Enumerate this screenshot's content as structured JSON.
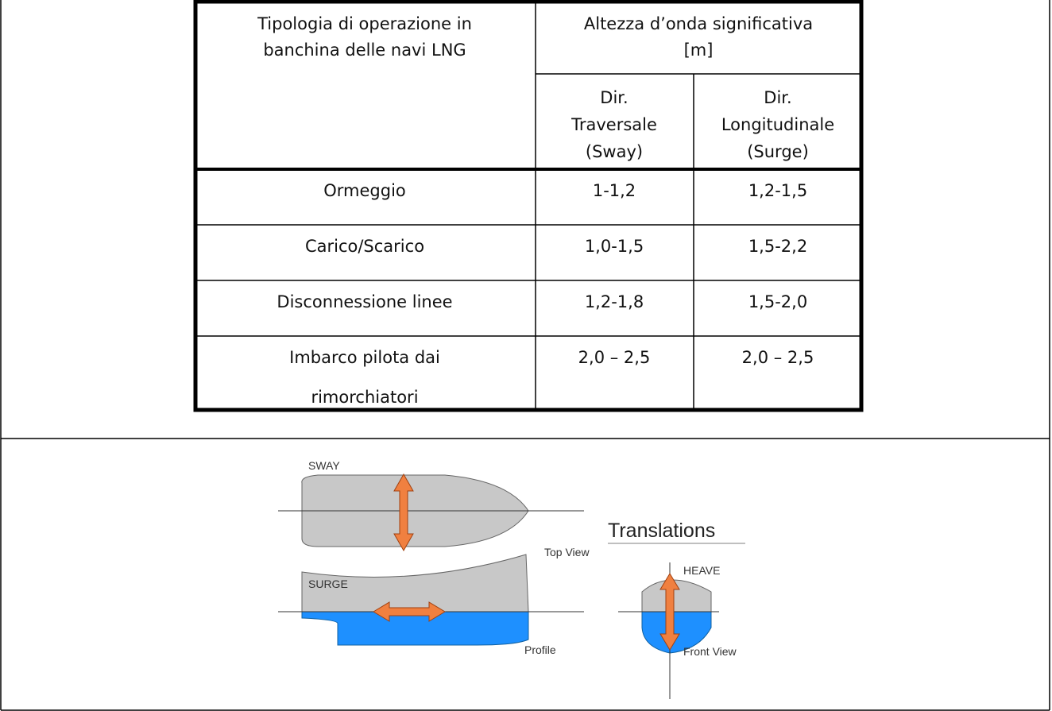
{
  "table": {
    "header": {
      "operation": [
        "Tipologia di operazione in",
        "banchina delle navi LNG"
      ],
      "wave_height": [
        "Altezza d’onda significativa",
        "[m]"
      ],
      "columns": [
        [
          "Dir.",
          "Traversale",
          "(Sway)"
        ],
        [
          "Dir.",
          "Longitudinale",
          "(Surge)"
        ]
      ]
    },
    "rows": [
      [
        [
          "Ormeggio"
        ],
        [
          "1-1,2"
        ],
        [
          "1,2-1,5"
        ]
      ],
      [
        [
          "Carico/Scarico"
        ],
        [
          "1,0-1,5"
        ],
        [
          "1,5-2,2"
        ]
      ],
      [
        [
          "Disconnessione linee"
        ],
        [
          "1,2-1,8"
        ],
        [
          "1,5-2,0"
        ]
      ],
      [
        [
          "Imbarco pilota dai",
          "rimorchiatori"
        ],
        [
          "2,0 – 2,5"
        ],
        [
          "2,0 – 2,5"
        ]
      ]
    ]
  },
  "diagram": {
    "title": "Translations",
    "sway": "SWAY",
    "top_view": "Top View",
    "surge": "SURGE",
    "profile": "Profile",
    "heave": "HEAVE",
    "front_view": "Front View"
  }
}
